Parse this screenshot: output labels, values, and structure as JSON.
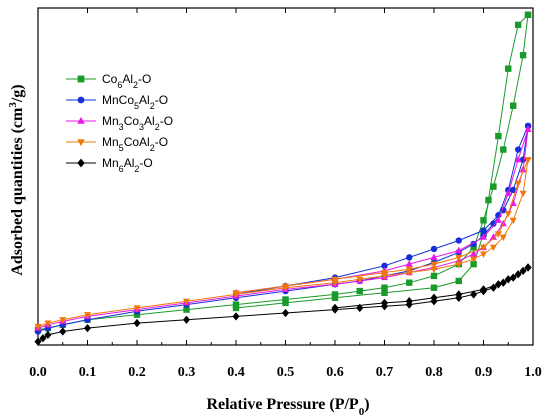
{
  "chart_data": {
    "type": "line",
    "xlabel": "Relative Pressure (P/P",
    "xlabel_sub": "0",
    "xlabel_close": ")",
    "ylabel": "Adsorbed quantities (cm",
    "ylabel_sup": "3",
    "ylabel_close": "/g)",
    "xlim": [
      0.0,
      1.0
    ],
    "ylim": [
      0,
      100
    ],
    "xticks": [
      "0.0",
      "0.1",
      "0.2",
      "0.3",
      "0.4",
      "0.5",
      "0.6",
      "0.7",
      "0.8",
      "0.9",
      "1.0"
    ],
    "yticks_labeled": false,
    "grid": false,
    "legend_position": "top-left",
    "series": [
      {
        "name_parts": [
          [
            "Co",
            ""
          ],
          [
            "6",
            "sub"
          ],
          [
            "Al",
            ""
          ],
          [
            "2",
            "sub"
          ],
          [
            "-O",
            ""
          ]
        ],
        "color": "#1a9a2a",
        "marker": "square",
        "adsorption": [
          [
            0.0,
            4.5
          ],
          [
            0.02,
            5
          ],
          [
            0.05,
            6
          ],
          [
            0.1,
            7.5
          ],
          [
            0.2,
            9
          ],
          [
            0.3,
            10.5
          ],
          [
            0.4,
            12
          ],
          [
            0.5,
            13.5
          ],
          [
            0.6,
            15
          ],
          [
            0.65,
            16
          ],
          [
            0.7,
            17
          ],
          [
            0.75,
            18.5
          ],
          [
            0.8,
            20.5
          ],
          [
            0.85,
            24
          ],
          [
            0.88,
            29
          ],
          [
            0.9,
            37
          ],
          [
            0.92,
            47
          ],
          [
            0.94,
            58
          ],
          [
            0.96,
            71
          ],
          [
            0.98,
            86
          ],
          [
            0.99,
            98
          ]
        ],
        "desorption": [
          [
            0.99,
            98
          ],
          [
            0.97,
            95
          ],
          [
            0.95,
            82
          ],
          [
            0.93,
            62
          ],
          [
            0.91,
            43
          ],
          [
            0.9,
            33
          ],
          [
            0.88,
            24
          ],
          [
            0.85,
            19
          ],
          [
            0.8,
            17
          ],
          [
            0.7,
            15.5
          ],
          [
            0.6,
            14
          ],
          [
            0.5,
            12.5
          ],
          [
            0.4,
            11
          ]
        ]
      },
      {
        "name_parts": [
          [
            "MnCo",
            ""
          ],
          [
            "5",
            "sub"
          ],
          [
            "Al",
            ""
          ],
          [
            "2",
            "sub"
          ],
          [
            "-O",
            ""
          ]
        ],
        "color": "#1530d8",
        "marker": "circle",
        "adsorption": [
          [
            0.0,
            4
          ],
          [
            0.02,
            5
          ],
          [
            0.05,
            6
          ],
          [
            0.1,
            7.5
          ],
          [
            0.2,
            10
          ],
          [
            0.3,
            12
          ],
          [
            0.4,
            14
          ],
          [
            0.5,
            16
          ],
          [
            0.6,
            18
          ],
          [
            0.65,
            19
          ],
          [
            0.7,
            20.5
          ],
          [
            0.75,
            22
          ],
          [
            0.8,
            24.5
          ],
          [
            0.85,
            27.5
          ],
          [
            0.88,
            30
          ],
          [
            0.9,
            32.5
          ],
          [
            0.92,
            36
          ],
          [
            0.94,
            40
          ],
          [
            0.96,
            46
          ],
          [
            0.98,
            55
          ],
          [
            0.99,
            65
          ]
        ],
        "desorption": [
          [
            0.99,
            65
          ],
          [
            0.97,
            58
          ],
          [
            0.95,
            46
          ],
          [
            0.93,
            38.5
          ],
          [
            0.9,
            34
          ],
          [
            0.85,
            31
          ],
          [
            0.8,
            28.5
          ],
          [
            0.75,
            26
          ],
          [
            0.7,
            23.5
          ],
          [
            0.6,
            20
          ],
          [
            0.5,
            17.5
          ],
          [
            0.4,
            15
          ]
        ]
      },
      {
        "name_parts": [
          [
            "Mn",
            ""
          ],
          [
            "3",
            "sub"
          ],
          [
            "Co",
            ""
          ],
          [
            "3",
            "sub"
          ],
          [
            "Al",
            ""
          ],
          [
            "2",
            "sub"
          ],
          [
            "-O",
            ""
          ]
        ],
        "color": "#e818e8",
        "marker": "triangle-up",
        "adsorption": [
          [
            0.0,
            5
          ],
          [
            0.02,
            6
          ],
          [
            0.05,
            7
          ],
          [
            0.1,
            8.5
          ],
          [
            0.2,
            10.5
          ],
          [
            0.3,
            12.5
          ],
          [
            0.4,
            14.5
          ],
          [
            0.5,
            16.5
          ],
          [
            0.6,
            18
          ],
          [
            0.65,
            19
          ],
          [
            0.7,
            20
          ],
          [
            0.75,
            21.5
          ],
          [
            0.8,
            23
          ],
          [
            0.85,
            25
          ],
          [
            0.88,
            27
          ],
          [
            0.9,
            29
          ],
          [
            0.92,
            32
          ],
          [
            0.94,
            36
          ],
          [
            0.96,
            42
          ],
          [
            0.98,
            52
          ],
          [
            0.99,
            64
          ]
        ],
        "desorption": [
          [
            0.99,
            64
          ],
          [
            0.97,
            55
          ],
          [
            0.95,
            45
          ],
          [
            0.93,
            37
          ],
          [
            0.9,
            32
          ],
          [
            0.85,
            28
          ],
          [
            0.8,
            26
          ],
          [
            0.75,
            24
          ],
          [
            0.7,
            22
          ],
          [
            0.6,
            19.5
          ],
          [
            0.5,
            17.5
          ],
          [
            0.4,
            15.5
          ]
        ]
      },
      {
        "name_parts": [
          [
            "Mn",
            ""
          ],
          [
            "5",
            "sub"
          ],
          [
            "CoAl",
            ""
          ],
          [
            "2",
            "sub"
          ],
          [
            "-O",
            ""
          ]
        ],
        "color": "#f0780a",
        "marker": "triangle-down",
        "adsorption": [
          [
            0.0,
            5.5
          ],
          [
            0.02,
            6.5
          ],
          [
            0.05,
            7.5
          ],
          [
            0.1,
            9
          ],
          [
            0.2,
            11
          ],
          [
            0.3,
            13
          ],
          [
            0.4,
            15
          ],
          [
            0.5,
            17
          ],
          [
            0.6,
            18.5
          ],
          [
            0.65,
            19.5
          ],
          [
            0.7,
            20.5
          ],
          [
            0.75,
            21.5
          ],
          [
            0.8,
            22.5
          ],
          [
            0.85,
            24
          ],
          [
            0.88,
            25.5
          ],
          [
            0.9,
            27
          ],
          [
            0.92,
            29
          ],
          [
            0.94,
            32
          ],
          [
            0.96,
            37
          ],
          [
            0.98,
            45
          ],
          [
            0.99,
            55
          ]
        ],
        "desorption": [
          [
            0.99,
            55
          ],
          [
            0.97,
            48
          ],
          [
            0.95,
            39
          ],
          [
            0.93,
            33
          ],
          [
            0.9,
            29
          ],
          [
            0.85,
            26
          ],
          [
            0.8,
            24
          ],
          [
            0.75,
            22.5
          ],
          [
            0.7,
            21.5
          ],
          [
            0.6,
            19.5
          ],
          [
            0.5,
            17.5
          ],
          [
            0.4,
            15.5
          ]
        ]
      },
      {
        "name_parts": [
          [
            "Mn",
            ""
          ],
          [
            "6",
            "sub"
          ],
          [
            "Al",
            ""
          ],
          [
            "2",
            "sub"
          ],
          [
            "-O",
            ""
          ]
        ],
        "color": "#000000",
        "marker": "diamond",
        "adsorption": [
          [
            0.0,
            1
          ],
          [
            0.01,
            2
          ],
          [
            0.02,
            3
          ],
          [
            0.05,
            4
          ],
          [
            0.1,
            5
          ],
          [
            0.2,
            6.5
          ],
          [
            0.3,
            7.5
          ],
          [
            0.4,
            8.5
          ],
          [
            0.5,
            9.5
          ],
          [
            0.6,
            10.5
          ],
          [
            0.65,
            11
          ],
          [
            0.7,
            11.5
          ],
          [
            0.75,
            12
          ],
          [
            0.8,
            13
          ],
          [
            0.85,
            14
          ],
          [
            0.88,
            15
          ],
          [
            0.9,
            16
          ],
          [
            0.92,
            17
          ],
          [
            0.94,
            18.5
          ],
          [
            0.96,
            20
          ],
          [
            0.98,
            22
          ],
          [
            0.99,
            23
          ]
        ],
        "desorption": [
          [
            0.99,
            23
          ],
          [
            0.97,
            21
          ],
          [
            0.95,
            19.5
          ],
          [
            0.93,
            18
          ],
          [
            0.9,
            16.5
          ],
          [
            0.85,
            15
          ],
          [
            0.8,
            14
          ],
          [
            0.75,
            13
          ],
          [
            0.7,
            12.5
          ],
          [
            0.6,
            11
          ]
        ]
      }
    ]
  }
}
